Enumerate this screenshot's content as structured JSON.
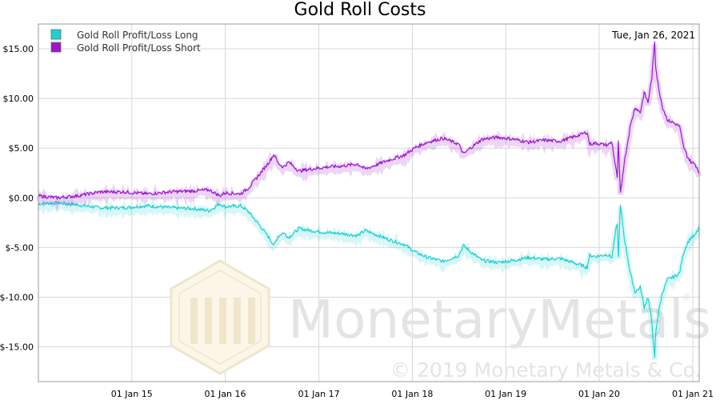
{
  "chart_data": {
    "type": "line",
    "title": "Gold Roll Costs",
    "date_label": "Tue, Jan 26, 2021",
    "xlabel": "",
    "ylabel": "",
    "xlim": [
      "2014-01-01",
      "2021-01-26"
    ],
    "ylim": [
      -18.5,
      17.5
    ],
    "y_ticks": [
      15,
      10,
      5,
      0,
      -5,
      -10,
      -15
    ],
    "y_tick_labels": [
      "$15.00",
      "$10.00",
      "$5.00",
      "$0.00",
      "$-5.00",
      "$-10.00",
      "$-15.00"
    ],
    "x_ticks": [
      "2015-01-01",
      "2016-01-01",
      "2017-01-01",
      "2018-01-01",
      "2019-01-01",
      "2020-01-01",
      "2021-01-01"
    ],
    "x_tick_labels": [
      "01 Jan 15",
      "01 Jan 16",
      "01 Jan 17",
      "01 Jan 18",
      "01 Jan 19",
      "01 Jan 20",
      "01 Jan 21"
    ],
    "grid": true,
    "legend_position": "top-left",
    "series": [
      {
        "name": "Gold Roll Profit/Loss Long",
        "color": "#1fd0d0",
        "points": [
          [
            "2014-01-01",
            -0.6
          ],
          [
            "2014-03-15",
            -0.5
          ],
          [
            "2014-06-01",
            -0.7
          ],
          [
            "2014-09-01",
            -1.0
          ],
          [
            "2014-12-01",
            -1.0
          ],
          [
            "2015-03-01",
            -0.8
          ],
          [
            "2015-06-01",
            -1.0
          ],
          [
            "2015-09-01",
            -1.1
          ],
          [
            "2015-11-01",
            -1.3
          ],
          [
            "2015-12-10",
            -0.6
          ],
          [
            "2016-01-01",
            -0.9
          ],
          [
            "2016-03-01",
            -0.8
          ],
          [
            "2016-04-01",
            -1.4
          ],
          [
            "2016-05-15",
            -2.8
          ],
          [
            "2016-06-20",
            -4.0
          ],
          [
            "2016-07-10",
            -4.8
          ],
          [
            "2016-07-25",
            -3.9
          ],
          [
            "2016-08-15",
            -3.5
          ],
          [
            "2016-09-05",
            -4.0
          ],
          [
            "2016-10-15",
            -3.1
          ],
          [
            "2016-12-01",
            -3.3
          ],
          [
            "2017-02-01",
            -3.5
          ],
          [
            "2017-04-01",
            -3.6
          ],
          [
            "2017-06-01",
            -3.8
          ],
          [
            "2017-07-01",
            -3.3
          ],
          [
            "2017-08-01",
            -3.6
          ],
          [
            "2017-10-01",
            -4.2
          ],
          [
            "2017-12-01",
            -4.7
          ],
          [
            "2018-01-15",
            -5.5
          ],
          [
            "2018-03-01",
            -6.0
          ],
          [
            "2018-05-01",
            -6.4
          ],
          [
            "2018-07-01",
            -5.8
          ],
          [
            "2018-07-20",
            -4.8
          ],
          [
            "2018-08-15",
            -5.4
          ],
          [
            "2018-10-01",
            -6.3
          ],
          [
            "2018-12-01",
            -6.5
          ],
          [
            "2019-02-01",
            -6.3
          ],
          [
            "2019-04-01",
            -6.0
          ],
          [
            "2019-06-01",
            -6.2
          ],
          [
            "2019-08-01",
            -6.1
          ],
          [
            "2019-10-01",
            -6.6
          ],
          [
            "2019-11-15",
            -7.0
          ],
          [
            "2019-11-25",
            -5.8
          ],
          [
            "2019-12-20",
            -5.9
          ],
          [
            "2020-02-01",
            -5.7
          ],
          [
            "2020-02-20",
            -6.0
          ],
          [
            "2020-03-05",
            -3.5
          ],
          [
            "2020-03-12",
            -2.5
          ],
          [
            "2020-03-16",
            -6.0
          ],
          [
            "2020-03-24",
            -0.8
          ],
          [
            "2020-03-30",
            -2.0
          ],
          [
            "2020-04-08",
            -4.0
          ],
          [
            "2020-04-15",
            -5.0
          ],
          [
            "2020-05-01",
            -7.5
          ],
          [
            "2020-05-20",
            -9.5
          ],
          [
            "2020-06-10",
            -9.0
          ],
          [
            "2020-06-25",
            -11.0
          ],
          [
            "2020-07-10",
            -10.0
          ],
          [
            "2020-07-25",
            -12.5
          ],
          [
            "2020-08-05",
            -16.2
          ],
          [
            "2020-08-08",
            -14.0
          ],
          [
            "2020-08-12",
            -13.0
          ],
          [
            "2020-08-20",
            -11.5
          ],
          [
            "2020-09-05",
            -9.5
          ],
          [
            "2020-09-25",
            -8.2
          ],
          [
            "2020-10-15",
            -8.0
          ],
          [
            "2020-11-10",
            -7.6
          ],
          [
            "2020-11-25",
            -5.6
          ],
          [
            "2020-12-10",
            -4.6
          ],
          [
            "2020-12-25",
            -4.0
          ],
          [
            "2021-01-10",
            -3.8
          ],
          [
            "2021-01-20",
            -3.3
          ],
          [
            "2021-01-26",
            -2.8
          ]
        ]
      },
      {
        "name": "Gold Roll Profit/Loss Short",
        "color": "#9a17d0",
        "points": [
          [
            "2014-01-01",
            0.2
          ],
          [
            "2014-03-15",
            0.0
          ],
          [
            "2014-06-01",
            0.2
          ],
          [
            "2014-09-01",
            0.6
          ],
          [
            "2014-12-01",
            0.6
          ],
          [
            "2015-03-01",
            0.4
          ],
          [
            "2015-06-01",
            0.6
          ],
          [
            "2015-09-01",
            0.7
          ],
          [
            "2015-11-01",
            0.8
          ],
          [
            "2015-12-10",
            0.2
          ],
          [
            "2016-01-01",
            0.5
          ],
          [
            "2016-03-01",
            0.4
          ],
          [
            "2016-04-01",
            1.0
          ],
          [
            "2016-05-15",
            2.4
          ],
          [
            "2016-06-20",
            3.6
          ],
          [
            "2016-07-10",
            4.4
          ],
          [
            "2016-07-25",
            3.5
          ],
          [
            "2016-08-15",
            3.1
          ],
          [
            "2016-09-05",
            3.6
          ],
          [
            "2016-10-15",
            2.7
          ],
          [
            "2016-12-01",
            2.9
          ],
          [
            "2017-02-01",
            3.1
          ],
          [
            "2017-04-01",
            3.2
          ],
          [
            "2017-06-01",
            3.4
          ],
          [
            "2017-07-01",
            2.9
          ],
          [
            "2017-08-01",
            3.2
          ],
          [
            "2017-10-01",
            3.8
          ],
          [
            "2017-12-01",
            4.3
          ],
          [
            "2018-01-15",
            5.1
          ],
          [
            "2018-03-01",
            5.6
          ],
          [
            "2018-05-01",
            6.0
          ],
          [
            "2018-07-01",
            5.4
          ],
          [
            "2018-07-20",
            4.4
          ],
          [
            "2018-08-15",
            5.0
          ],
          [
            "2018-10-01",
            5.9
          ],
          [
            "2018-12-01",
            6.1
          ],
          [
            "2019-02-01",
            5.9
          ],
          [
            "2019-04-01",
            5.6
          ],
          [
            "2019-06-01",
            5.8
          ],
          [
            "2019-08-01",
            5.7
          ],
          [
            "2019-10-01",
            6.2
          ],
          [
            "2019-11-15",
            6.6
          ],
          [
            "2019-11-25",
            5.4
          ],
          [
            "2019-12-20",
            5.5
          ],
          [
            "2020-02-01",
            5.3
          ],
          [
            "2020-02-20",
            5.6
          ],
          [
            "2020-03-05",
            3.1
          ],
          [
            "2020-03-12",
            2.1
          ],
          [
            "2020-03-16",
            5.6
          ],
          [
            "2020-03-24",
            0.4
          ],
          [
            "2020-03-30",
            1.6
          ],
          [
            "2020-04-08",
            3.6
          ],
          [
            "2020-04-15",
            4.6
          ],
          [
            "2020-05-01",
            7.1
          ],
          [
            "2020-05-20",
            9.1
          ],
          [
            "2020-06-10",
            8.6
          ],
          [
            "2020-06-25",
            10.6
          ],
          [
            "2020-07-10",
            9.6
          ],
          [
            "2020-07-25",
            12.1
          ],
          [
            "2020-08-05",
            15.8
          ],
          [
            "2020-08-08",
            13.6
          ],
          [
            "2020-08-12",
            12.6
          ],
          [
            "2020-08-20",
            11.1
          ],
          [
            "2020-09-05",
            9.1
          ],
          [
            "2020-09-25",
            7.8
          ],
          [
            "2020-10-15",
            7.6
          ],
          [
            "2020-11-10",
            7.2
          ],
          [
            "2020-11-25",
            5.2
          ],
          [
            "2020-12-10",
            4.2
          ],
          [
            "2020-12-25",
            3.6
          ],
          [
            "2021-01-10",
            3.4
          ],
          [
            "2021-01-20",
            2.9
          ],
          [
            "2021-01-26",
            2.4
          ]
        ]
      }
    ]
  },
  "watermark": {
    "brand_name": "MonetaryMetals",
    "registered_mark": "®",
    "copyright": "© 2019 Monetary Metals & Co."
  }
}
